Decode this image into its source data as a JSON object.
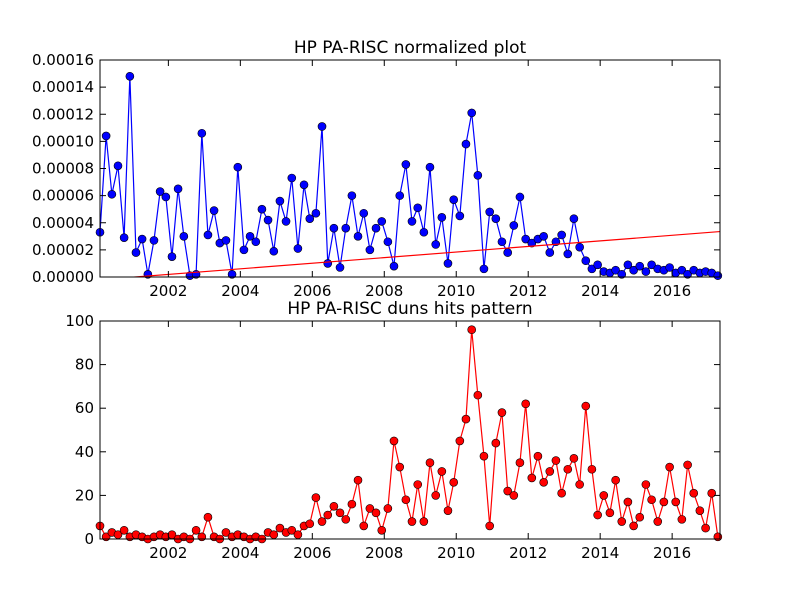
{
  "chart_data": [
    {
      "type": "line",
      "title": "HP PA-RISC normalized plot",
      "x": [
        2000.1,
        2000.27,
        2000.43,
        2000.6,
        2000.77,
        2000.93,
        2001.1,
        2001.27,
        2001.43,
        2001.6,
        2001.77,
        2001.93,
        2002.1,
        2002.27,
        2002.43,
        2002.6,
        2002.77,
        2002.93,
        2003.1,
        2003.27,
        2003.43,
        2003.6,
        2003.77,
        2003.93,
        2004.1,
        2004.27,
        2004.43,
        2004.6,
        2004.77,
        2004.93,
        2005.1,
        2005.27,
        2005.43,
        2005.6,
        2005.77,
        2005.93,
        2006.1,
        2006.27,
        2006.43,
        2006.6,
        2006.77,
        2006.93,
        2007.1,
        2007.27,
        2007.43,
        2007.6,
        2007.77,
        2007.93,
        2008.1,
        2008.27,
        2008.43,
        2008.6,
        2008.77,
        2008.93,
        2009.1,
        2009.27,
        2009.43,
        2009.6,
        2009.77,
        2009.93,
        2010.1,
        2010.27,
        2010.43,
        2010.6,
        2010.77,
        2010.93,
        2011.1,
        2011.27,
        2011.43,
        2011.6,
        2011.77,
        2011.93,
        2012.1,
        2012.27,
        2012.43,
        2012.6,
        2012.77,
        2012.93,
        2013.1,
        2013.27,
        2013.43,
        2013.6,
        2013.77,
        2013.93,
        2014.1,
        2014.27,
        2014.43,
        2014.6,
        2014.77,
        2014.93,
        2015.1,
        2015.27,
        2015.43,
        2015.6,
        2015.77,
        2015.93,
        2016.1,
        2016.27,
        2016.43,
        2016.6,
        2016.77,
        2016.93,
        2017.1,
        2017.27
      ],
      "series": [
        {
          "color": "#0000ff",
          "values": [
            3.3e-05,
            0.000104,
            6.1e-05,
            8.2e-05,
            2.9e-05,
            0.000148,
            1.8e-05,
            2.8e-05,
            2e-06,
            2.7e-05,
            6.3e-05,
            5.9e-05,
            1.5e-05,
            6.5e-05,
            3e-05,
            1e-06,
            2e-06,
            0.000106,
            3.1e-05,
            4.9e-05,
            2.5e-05,
            2.7e-05,
            2e-06,
            8.1e-05,
            2e-05,
            3e-05,
            2.6e-05,
            5e-05,
            4.2e-05,
            1.9e-05,
            5.6e-05,
            4.1e-05,
            7.3e-05,
            2.1e-05,
            6.8e-05,
            4.3e-05,
            4.7e-05,
            0.000111,
            1e-05,
            3.6e-05,
            7e-06,
            3.6e-05,
            6e-05,
            3e-05,
            4.7e-05,
            2e-05,
            3.6e-05,
            4.1e-05,
            2.6e-05,
            8e-06,
            6e-05,
            8.3e-05,
            4.1e-05,
            5.1e-05,
            3.3e-05,
            8.1e-05,
            2.4e-05,
            4.4e-05,
            1e-05,
            5.7e-05,
            4.5e-05,
            9.8e-05,
            0.000121,
            7.5e-05,
            6e-06,
            4.8e-05,
            4.3e-05,
            2.6e-05,
            1.8e-05,
            3.8e-05,
            5.9e-05,
            2.8e-05,
            2.5e-05,
            2.8e-05,
            3e-05,
            1.8e-05,
            2.6e-05,
            3.1e-05,
            1.7e-05,
            4.3e-05,
            2.2e-05,
            1.2e-05,
            6e-06,
            9e-06,
            4e-06,
            3e-06,
            5e-06,
            2e-06,
            9e-06,
            5e-06,
            8e-06,
            4e-06,
            9e-06,
            6e-06,
            5e-06,
            7e-06,
            3e-06,
            5e-06,
            2e-06,
            5e-06,
            3e-06,
            4e-06,
            3e-06,
            1e-06
          ]
        }
      ],
      "fit": {
        "color": "#ff0000",
        "x": [
          2000.1,
          2017.33
        ],
        "values": [
          -2e-06,
          3.35e-05
        ]
      },
      "xlim": [
        2000.1,
        2017.33
      ],
      "xticks": [
        2002,
        2004,
        2006,
        2008,
        2010,
        2012,
        2014,
        2016
      ],
      "ylim": [
        0,
        0.00016
      ],
      "yticks": [
        {
          "value": 0,
          "label": "0.00000"
        },
        {
          "value": 2e-05,
          "label": "0.00002"
        },
        {
          "value": 4e-05,
          "label": "0.00004"
        },
        {
          "value": 6e-05,
          "label": "0.00006"
        },
        {
          "value": 8e-05,
          "label": "0.00008"
        },
        {
          "value": 0.0001,
          "label": "0.00010"
        },
        {
          "value": 0.00012,
          "label": "0.00012"
        },
        {
          "value": 0.00014,
          "label": "0.00014"
        },
        {
          "value": 0.00016,
          "label": "0.00016"
        }
      ]
    },
    {
      "type": "line",
      "title": "HP PA-RISC duns hits pattern",
      "x": [
        2000.1,
        2000.27,
        2000.43,
        2000.6,
        2000.77,
        2000.93,
        2001.1,
        2001.27,
        2001.43,
        2001.6,
        2001.77,
        2001.93,
        2002.1,
        2002.27,
        2002.43,
        2002.6,
        2002.77,
        2002.93,
        2003.1,
        2003.27,
        2003.43,
        2003.6,
        2003.77,
        2003.93,
        2004.1,
        2004.27,
        2004.43,
        2004.6,
        2004.77,
        2004.93,
        2005.1,
        2005.27,
        2005.43,
        2005.6,
        2005.77,
        2005.93,
        2006.1,
        2006.27,
        2006.43,
        2006.6,
        2006.77,
        2006.93,
        2007.1,
        2007.27,
        2007.43,
        2007.6,
        2007.77,
        2007.93,
        2008.1,
        2008.27,
        2008.43,
        2008.6,
        2008.77,
        2008.93,
        2009.1,
        2009.27,
        2009.43,
        2009.6,
        2009.77,
        2009.93,
        2010.1,
        2010.27,
        2010.43,
        2010.6,
        2010.77,
        2010.93,
        2011.1,
        2011.27,
        2011.43,
        2011.6,
        2011.77,
        2011.93,
        2012.1,
        2012.27,
        2012.43,
        2012.6,
        2012.77,
        2012.93,
        2013.1,
        2013.27,
        2013.43,
        2013.6,
        2013.77,
        2013.93,
        2014.1,
        2014.27,
        2014.43,
        2014.6,
        2014.77,
        2014.93,
        2015.1,
        2015.27,
        2015.43,
        2015.6,
        2015.77,
        2015.93,
        2016.1,
        2016.27,
        2016.43,
        2016.6,
        2016.77,
        2016.93,
        2017.1,
        2017.27
      ],
      "series": [
        {
          "color": "#ff0000",
          "values": [
            6,
            1,
            3,
            2,
            4,
            1,
            2,
            1,
            0,
            1,
            2,
            1,
            2,
            0,
            1,
            0,
            4,
            1,
            10,
            1,
            0,
            3,
            1,
            2,
            1,
            0,
            1,
            0,
            3,
            2,
            5,
            3,
            4,
            2,
            6,
            7,
            19,
            8,
            11,
            15,
            12,
            9,
            16,
            27,
            6,
            14,
            12,
            4,
            14,
            45,
            33,
            18,
            8,
            25,
            8,
            35,
            20,
            31,
            13,
            26,
            45,
            55,
            96,
            66,
            38,
            6,
            44,
            58,
            22,
            20,
            35,
            62,
            28,
            38,
            26,
            31,
            36,
            21,
            32,
            37,
            25,
            61,
            32,
            11,
            20,
            12,
            27,
            8,
            17,
            6,
            10,
            25,
            18,
            8,
            17,
            33,
            17,
            9,
            34,
            21,
            13,
            5,
            21,
            1
          ]
        }
      ],
      "xlim": [
        2000.1,
        2017.33
      ],
      "xticks": [
        2002,
        2004,
        2006,
        2008,
        2010,
        2012,
        2014,
        2016
      ],
      "ylim": [
        0,
        100
      ],
      "yticks": [
        0,
        20,
        40,
        60,
        80,
        100
      ]
    }
  ]
}
